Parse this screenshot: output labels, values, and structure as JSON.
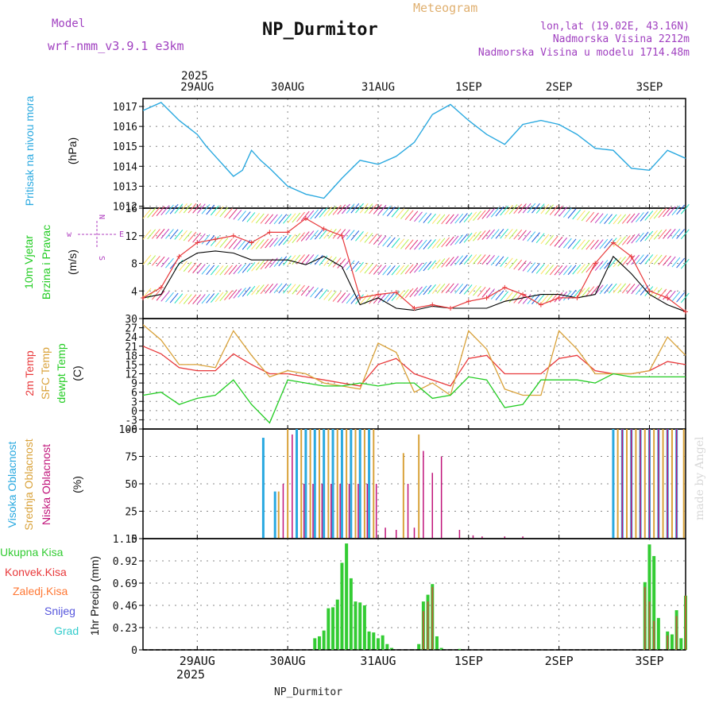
{
  "header": {
    "model_label": "Model",
    "model_name": "wrf-nmm_v3.9.1  e3km",
    "station": "NP_Durmitor",
    "product": "Meteogram",
    "lonlat": "lon,lat (19.02E, 43.16N)",
    "elevation": "Nadmorska Visina 2212m",
    "model_elevation": "Nadmorska Visina u modelu 1714.48m",
    "credit": "made by Angel",
    "footer_station": "NP_Durmitor"
  },
  "time_axis": {
    "top_year": "2025",
    "bottom_year": "2025",
    "dates": [
      "29AUG",
      "30AUG",
      "31AUG",
      "1SEP",
      "2SEP",
      "3SEP"
    ],
    "start_day_offset": 0.4,
    "end_day_offset": 6.4
  },
  "colors": {
    "pressure": "#2aa9e0",
    "wind_avg": "#000000",
    "wind_gust": "#e8383a",
    "temp2m": "#e8383a",
    "temp_sfc": "#d9a23a",
    "dewpoint": "#22cc22",
    "cloud_high": "#2aa9e0",
    "cloud_mid": "#d9a23a",
    "cloud_low": "#c0147a",
    "precip_total": "#33cc33",
    "precip_conv": "#e8383a",
    "precip_frozen": "#ff7733",
    "precip_snow": "#5555dd",
    "precip_hail": "#33cccc"
  },
  "chart_data": [
    {
      "type": "line",
      "title": "Pritisak na nivou mora",
      "ylabel": "(hPa)",
      "ylim": [
        1011.9,
        1017.4
      ],
      "yticks": [
        "1012",
        "1013",
        "1014",
        "1015",
        "1016",
        "1017"
      ],
      "x_days": [
        0.4,
        0.6,
        0.8,
        1.0,
        1.1,
        1.2,
        1.4,
        1.5,
        1.6,
        1.7,
        1.8,
        2.0,
        2.2,
        2.4,
        2.6,
        2.8,
        3.0,
        3.2,
        3.4,
        3.6,
        3.8,
        4.0,
        4.2,
        4.4,
        4.6,
        4.8,
        5.0,
        5.2,
        5.4,
        5.6,
        5.8,
        6.0,
        6.2,
        6.4
      ],
      "values": [
        1016.8,
        1017.2,
        1016.3,
        1015.6,
        1015.0,
        1014.5,
        1013.5,
        1013.8,
        1014.8,
        1014.3,
        1013.9,
        1013.0,
        1012.6,
        1012.4,
        1013.4,
        1014.3,
        1014.1,
        1014.5,
        1015.2,
        1016.6,
        1017.1,
        1016.3,
        1015.6,
        1015.1,
        1016.1,
        1016.3,
        1016.1,
        1015.6,
        1014.9,
        1014.8,
        1013.9,
        1013.8,
        1014.8,
        1014.4
      ]
    },
    {
      "type": "line",
      "title": "10m Vjetar Brzina i Pravac",
      "ylabel": "(m/s)",
      "direction_legend": [
        "w",
        "E",
        "N",
        "S"
      ],
      "ylim": [
        0,
        16
      ],
      "yticks": [
        "4",
        "8",
        "12",
        "16"
      ],
      "series": [
        {
          "name": "average",
          "x_days": [
            0.4,
            0.6,
            0.8,
            1.0,
            1.2,
            1.4,
            1.6,
            1.8,
            2.0,
            2.2,
            2.4,
            2.6,
            2.8,
            3.0,
            3.2,
            3.4,
            3.6,
            3.8,
            4.0,
            4.2,
            4.4,
            4.6,
            4.8,
            5.0,
            5.2,
            5.4,
            5.6,
            5.8,
            6.0,
            6.2,
            6.4
          ],
          "values": [
            3,
            3.5,
            8,
            9.5,
            9.8,
            9.5,
            8.5,
            8.5,
            8.5,
            7.8,
            9,
            7.5,
            2,
            3,
            1.5,
            1.2,
            1.8,
            1.5,
            1.5,
            1.5,
            2.5,
            3,
            3.5,
            3.5,
            3,
            3.5,
            9,
            6.5,
            3.5,
            2,
            1
          ]
        },
        {
          "name": "gusts",
          "x_days": [
            0.4,
            0.6,
            0.8,
            1.0,
            1.2,
            1.4,
            1.6,
            1.8,
            2.0,
            2.2,
            2.4,
            2.6,
            2.8,
            3.0,
            3.2,
            3.4,
            3.6,
            3.8,
            4.0,
            4.2,
            4.4,
            4.6,
            4.8,
            5.0,
            5.2,
            5.4,
            5.6,
            5.8,
            6.0,
            6.2,
            6.4
          ],
          "values": [
            3,
            4.5,
            9,
            11,
            11.5,
            12,
            11,
            12.5,
            12.5,
            14.5,
            13,
            12,
            3,
            3.5,
            3.8,
            1.5,
            2,
            1.5,
            2.5,
            3,
            4.5,
            3.5,
            2,
            3,
            3,
            8,
            11,
            9,
            4,
            3,
            1
          ]
        }
      ]
    },
    {
      "type": "line",
      "title": "2m Temp / SFC Temp / dewpt Temp",
      "ylabel": "(C)",
      "ylim": [
        -6,
        30
      ],
      "yticks": [
        "-6",
        "-3",
        "0",
        "3",
        "6",
        "9",
        "12",
        "15",
        "18",
        "21",
        "24",
        "27",
        "30"
      ],
      "series": [
        {
          "name": "2m Temp",
          "x_days": [
            0.4,
            0.6,
            0.8,
            1.0,
            1.2,
            1.4,
            1.6,
            1.8,
            2.0,
            2.2,
            2.4,
            2.6,
            2.8,
            3.0,
            3.2,
            3.4,
            3.6,
            3.8,
            4.0,
            4.2,
            4.4,
            4.6,
            4.8,
            5.0,
            5.2,
            5.4,
            5.6,
            5.8,
            6.0,
            6.2,
            6.4
          ],
          "values": [
            21,
            18.5,
            14,
            13,
            13,
            18.5,
            15,
            12,
            12,
            11,
            10,
            9,
            8,
            15,
            17,
            12,
            10,
            8,
            17,
            18,
            12,
            12,
            12,
            17,
            18,
            13,
            12,
            12,
            13,
            16,
            15
          ]
        },
        {
          "name": "SFC Temp",
          "x_days": [
            0.4,
            0.6,
            0.8,
            1.0,
            1.2,
            1.4,
            1.6,
            1.8,
            2.0,
            2.2,
            2.4,
            2.6,
            2.8,
            3.0,
            3.2,
            3.4,
            3.6,
            3.8,
            4.0,
            4.2,
            4.4,
            4.6,
            4.8,
            5.0,
            5.2,
            5.4,
            5.6,
            5.8,
            6.0,
            6.2,
            6.4
          ],
          "values": [
            28,
            23,
            15,
            15,
            14,
            26,
            18,
            11,
            13,
            12,
            9,
            8,
            7,
            22,
            19,
            6,
            9,
            5,
            26,
            20,
            7,
            5,
            5,
            26,
            20,
            12,
            12,
            12,
            13,
            24,
            18
          ]
        },
        {
          "name": "dewpt Temp",
          "x_days": [
            0.4,
            0.6,
            0.8,
            1.0,
            1.2,
            1.4,
            1.6,
            1.8,
            2.0,
            2.2,
            2.4,
            2.6,
            2.8,
            3.0,
            3.2,
            3.4,
            3.6,
            3.8,
            4.0,
            4.2,
            4.4,
            4.6,
            4.8,
            5.0,
            5.2,
            5.4,
            5.6,
            5.8,
            6.0,
            6.2,
            6.4
          ],
          "values": [
            5,
            6,
            2,
            4,
            5,
            10,
            2,
            -4,
            10,
            9,
            8,
            8,
            9,
            8,
            9,
            9,
            4,
            5,
            11,
            10,
            1,
            2,
            10,
            10,
            10,
            9,
            12,
            11,
            11,
            11,
            11
          ]
        }
      ]
    },
    {
      "type": "bar",
      "title": "Visoka / Srednja / Niska Oblacnost",
      "ylabel": "(%)",
      "ylim": [
        0,
        100
      ],
      "yticks": [
        "0",
        "25",
        "50",
        "75",
        "100"
      ],
      "series": [
        {
          "name": "Visoka Oblacnost",
          "x_days": [
            1.73,
            1.86,
            2.1,
            2.2,
            2.3,
            2.4,
            2.5,
            2.6,
            2.7,
            2.8,
            2.9,
            5.6,
            5.7,
            5.8,
            5.9,
            6.0,
            6.1,
            6.2,
            6.3
          ],
          "values": [
            92,
            43,
            100,
            100,
            100,
            100,
            100,
            100,
            100,
            100,
            100,
            100,
            100,
            100,
            100,
            100,
            100,
            100,
            100
          ]
        },
        {
          "name": "Srednja Oblacnost",
          "x_days": [
            1.9,
            2.0,
            2.15,
            2.25,
            2.35,
            2.45,
            2.55,
            2.65,
            2.75,
            2.85,
            2.95,
            3.28,
            3.45,
            5.65,
            5.75,
            5.85,
            5.95,
            6.05,
            6.15,
            6.25,
            6.38
          ],
          "values": [
            43,
            100,
            100,
            100,
            100,
            100,
            100,
            100,
            100,
            100,
            100,
            78,
            95,
            100,
            100,
            100,
            100,
            100,
            100,
            100,
            100
          ]
        },
        {
          "name": "Niska Oblacnost",
          "x_days": [
            1.95,
            2.05,
            2.18,
            2.28,
            2.38,
            2.48,
            2.58,
            2.68,
            2.78,
            2.88,
            2.98,
            3.08,
            3.2,
            3.33,
            3.4,
            3.5,
            3.6,
            3.7,
            3.9,
            4.05,
            4.15,
            4.4,
            4.6,
            5.7,
            5.8,
            5.9,
            6.0,
            6.1,
            6.2,
            6.3
          ],
          "values": [
            50,
            95,
            50,
            50,
            50,
            50,
            50,
            50,
            50,
            50,
            50,
            10,
            8,
            50,
            10,
            80,
            60,
            75,
            8,
            3,
            2,
            2,
            2,
            100,
            100,
            100,
            100,
            100,
            100,
            100
          ]
        }
      ]
    },
    {
      "type": "bar",
      "title": "1hr Precip",
      "ylabel": "1hr Precip (mm)",
      "ylim": [
        0,
        1.15
      ],
      "yticks": [
        "0",
        "0.23",
        "0.46",
        "0.69",
        "0.92",
        "1.15"
      ],
      "legend": [
        "Ukupna Kisa",
        "Konvek.Kisa",
        "Zaledj.Kisa",
        "Snijeg",
        "Grad"
      ],
      "series": [
        {
          "name": "Ukupna Kisa",
          "x_days": [
            2.3,
            2.35,
            2.4,
            2.45,
            2.5,
            2.55,
            2.6,
            2.65,
            2.7,
            2.75,
            2.8,
            2.85,
            2.9,
            2.95,
            3.0,
            3.05,
            3.1,
            3.15,
            3.45,
            3.5,
            3.55,
            3.6,
            3.65,
            3.7,
            3.9,
            5.95,
            6.0,
            6.05,
            6.1,
            6.2,
            6.25,
            6.3,
            6.35,
            6.4
          ],
          "values": [
            0.12,
            0.14,
            0.2,
            0.43,
            0.44,
            0.52,
            0.9,
            1.1,
            0.74,
            0.5,
            0.49,
            0.46,
            0.19,
            0.18,
            0.12,
            0.15,
            0.06,
            0.02,
            0.06,
            0.5,
            0.57,
            0.68,
            0.14,
            0.02,
            0.01,
            0.7,
            1.09,
            0.97,
            0.33,
            0.19,
            0.16,
            0.41,
            0.12,
            0.56
          ]
        },
        {
          "name": "Konvek.Kisa",
          "x_days": [
            3.5,
            3.55,
            3.6,
            5.95,
            6.0,
            6.05,
            6.2,
            6.3,
            6.4
          ],
          "values": [
            0.4,
            0.5,
            0.65,
            0.65,
            0.5,
            0.3,
            0.15,
            0.35,
            0.56
          ]
        }
      ]
    }
  ]
}
